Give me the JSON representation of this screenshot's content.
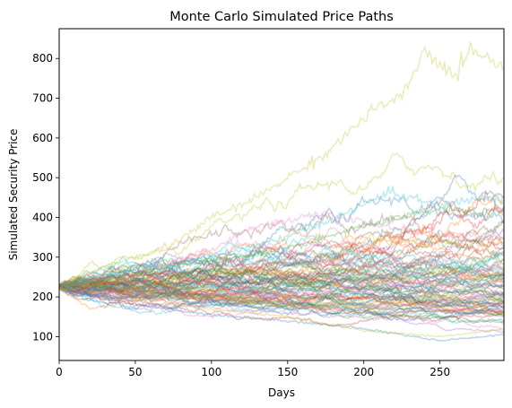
{
  "chart_data": {
    "type": "line",
    "title": "Monte Carlo Simulated Price Paths",
    "xlabel": "Days",
    "ylabel": "Simulated Security Price",
    "xlim": [
      0,
      292
    ],
    "ylim": [
      40,
      875
    ],
    "xticks": [
      0,
      50,
      100,
      150,
      200,
      250
    ],
    "yticks": [
      100,
      200,
      300,
      400,
      500,
      600,
      700,
      800
    ],
    "grid": false,
    "legend": "none",
    "num_series": 100,
    "start_value": 225,
    "num_days": 292,
    "line_alpha": 0.3,
    "colors": [
      "#1f77b4",
      "#ff7f0e",
      "#2ca02c",
      "#d62728",
      "#9467bd",
      "#8c564b",
      "#e377c2",
      "#7f7f7f",
      "#bcbd22",
      "#17becf"
    ],
    "highlighted_paths": [
      {
        "color": "#bcbd22",
        "x": [
          0,
          25,
          50,
          70,
          100,
          125,
          150,
          175,
          200,
          210,
          225,
          240,
          250,
          262,
          270,
          282,
          292
        ],
        "y": [
          225,
          270,
          300,
          320,
          400,
          440,
          500,
          560,
          650,
          680,
          700,
          820,
          780,
          760,
          830,
          800,
          775
        ]
      },
      {
        "color": "#17becf",
        "x": [
          0,
          50,
          100,
          150,
          200,
          215,
          250,
          280,
          292
        ],
        "y": [
          225,
          270,
          300,
          350,
          430,
          465,
          430,
          450,
          440
        ]
      },
      {
        "color": "#e377c2",
        "x": [
          0,
          50,
          100,
          130,
          175,
          210,
          240,
          292
        ],
        "y": [
          225,
          260,
          320,
          380,
          410,
          380,
          360,
          350
        ]
      },
      {
        "color": "#1f77b4",
        "x": [
          0,
          50,
          100,
          150,
          200,
          250,
          292
        ],
        "y": [
          225,
          180,
          155,
          140,
          120,
          90,
          105
        ]
      },
      {
        "color": "#bcbd22",
        "x": [
          0,
          50,
          100,
          150,
          200,
          250,
          292
        ],
        "y": [
          225,
          190,
          170,
          150,
          115,
          100,
          120
        ]
      },
      {
        "color": "#ff7f0e",
        "x": [
          0,
          20,
          50,
          100,
          150,
          200,
          250,
          292
        ],
        "y": [
          225,
          170,
          190,
          200,
          180,
          160,
          165,
          160
        ]
      },
      {
        "color": "#2ca02c",
        "x": [
          0,
          50,
          100,
          150,
          200,
          250,
          292
        ],
        "y": [
          225,
          260,
          290,
          320,
          380,
          420,
          410
        ]
      }
    ]
  }
}
